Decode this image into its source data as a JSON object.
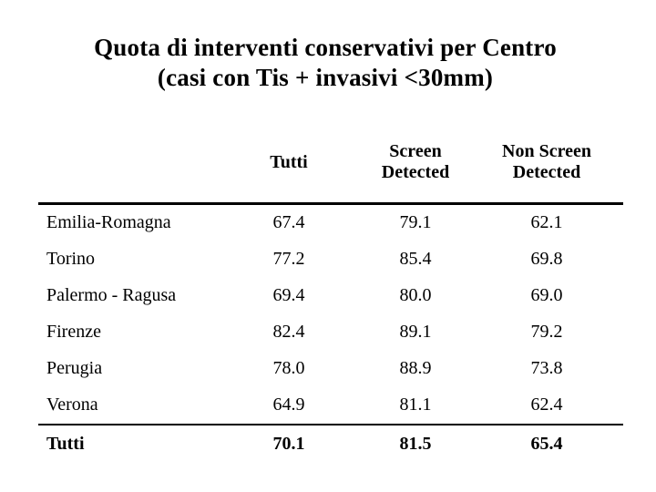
{
  "slide": {
    "background": "#ffffff",
    "text_color": "#000000"
  },
  "title": {
    "line1": "Quota di interventi conservativi per Centro",
    "line2": "(casi con Tis + invasivi <30mm)"
  },
  "table": {
    "row_header": "",
    "columns": [
      "Tutti",
      "Screen Detected",
      "Non Screen Detected"
    ],
    "rows": [
      {
        "label": "Emilia-Romagna",
        "values": [
          "67.4",
          "79.1",
          "62.1"
        ]
      },
      {
        "label": "Torino",
        "values": [
          "77.2",
          "85.4",
          "69.8"
        ]
      },
      {
        "label": "Palermo - Ragusa",
        "values": [
          "69.4",
          "80.0",
          "69.0"
        ]
      },
      {
        "label": "Firenze",
        "values": [
          "82.4",
          "89.1",
          "79.2"
        ]
      },
      {
        "label": "Perugia",
        "values": [
          "78.0",
          "88.9",
          "73.8"
        ]
      },
      {
        "label": "Verona",
        "values": [
          "64.9",
          "81.1",
          "62.4"
        ]
      }
    ],
    "total_row": {
      "label": "Tutti",
      "values": [
        "70.1",
        "81.5",
        "65.4"
      ]
    }
  }
}
